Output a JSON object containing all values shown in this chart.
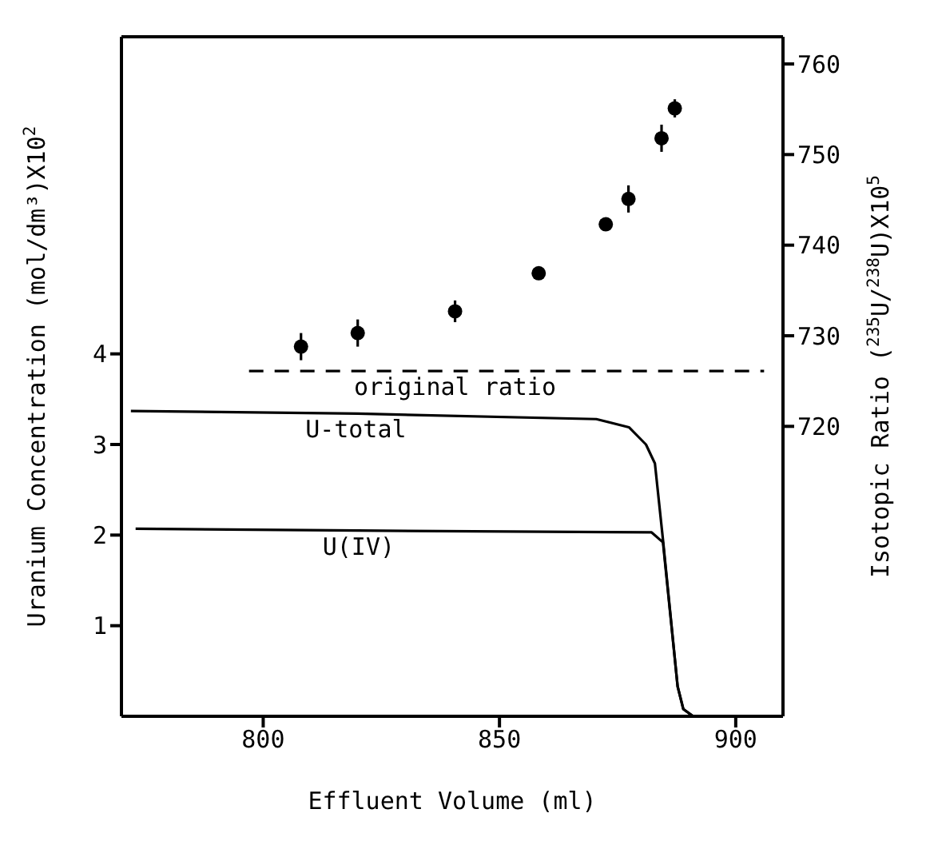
{
  "chart_data": {
    "type": "line",
    "xlabel": "Effluent Volume (ml)",
    "ylabel": "Uranium Concentration (mol/dm³)X10$^{2}$",
    "y2label": "Isotopic Ratio ($^{235}$U/$^{238}$U)X10$^{5}$",
    "xlim": [
      770,
      910
    ],
    "xticks": [
      800,
      850,
      900
    ],
    "ylim": [
      0,
      7.5
    ],
    "yticks": [
      1,
      2,
      3,
      4
    ],
    "y2lim": [
      688,
      763
    ],
    "y2ticks": [
      720,
      730,
      740,
      750,
      760
    ],
    "series": [
      {
        "name": "U-total",
        "color": "#000000",
        "line_style": "solid",
        "marker": "none",
        "x": [
          772,
          820,
          870.5,
          877.4,
          881,
          882.9,
          884.6,
          887.7,
          888.9,
          891
        ],
        "values": [
          3.37,
          3.34,
          3.28,
          3.19,
          3.0,
          2.79,
          1.95,
          0.33,
          0.08,
          0
        ]
      },
      {
        "name": "U(IV)",
        "color": "#000000",
        "line_style": "solid",
        "marker": "none",
        "x": [
          773,
          820,
          882.2,
          884.6,
          887.7,
          888.9,
          891
        ],
        "values": [
          2.07,
          2.05,
          2.03,
          1.92,
          0.33,
          0.08,
          0
        ]
      },
      {
        "name": "original ratio",
        "axis": "y2",
        "color": "#000000",
        "line_style": "dashed",
        "marker": "none",
        "x": [
          797,
          906
        ],
        "values": [
          726.1,
          726.1
        ]
      },
      {
        "type": "scatter",
        "axis": "y2",
        "color": "#000000",
        "marker": "circle",
        "x": [
          808,
          820,
          840.6,
          858.3,
          872.5,
          877.3,
          884.3,
          887.1
        ],
        "values": [
          728.8,
          730.3,
          732.7,
          736.9,
          742.3,
          745.1,
          751.8,
          755.1
        ],
        "errors": [
          1.5,
          1.5,
          1.2,
          null,
          null,
          1.5,
          1.5,
          1.0
        ]
      }
    ]
  }
}
